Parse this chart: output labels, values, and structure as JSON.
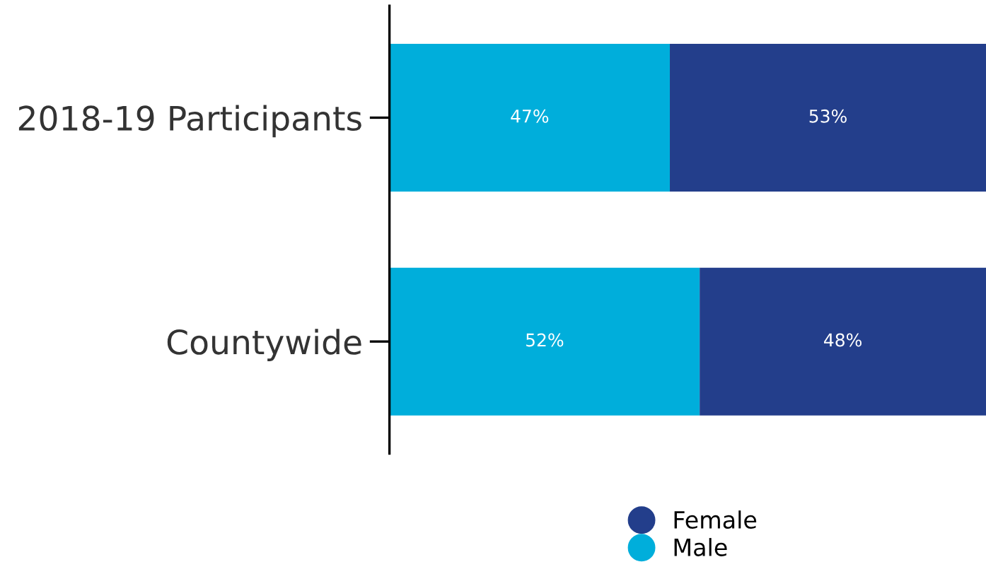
{
  "chart_data": {
    "type": "bar",
    "orientation": "horizontal",
    "stacked": true,
    "categories": [
      "2018-19 Participants",
      "Countywide"
    ],
    "xlim": [
      0,
      100
    ],
    "tick_labels": "y",
    "legend": "bottom",
    "grid": false,
    "series": [
      {
        "name": "Male",
        "color": "#00aedb",
        "values": [
          47,
          52
        ],
        "value_labels": [
          "47%",
          "52%"
        ]
      },
      {
        "name": "Female",
        "color": "#233e8b",
        "values": [
          53,
          48
        ],
        "value_labels": [
          "53%",
          "48%"
        ]
      }
    ]
  }
}
